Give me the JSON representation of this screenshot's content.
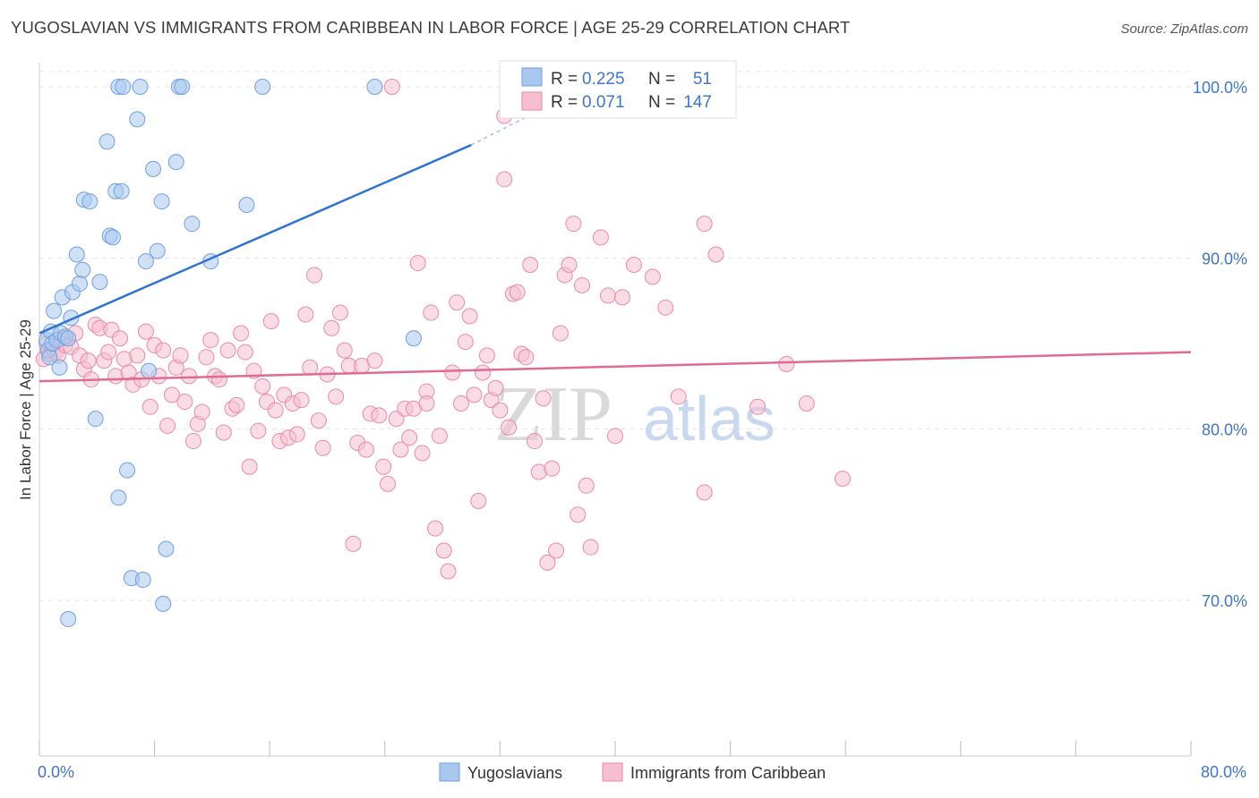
{
  "title": "YUGOSLAVIAN VS IMMIGRANTS FROM CARIBBEAN IN LABOR FORCE | AGE 25-29 CORRELATION CHART",
  "source": "Source: ZipAtlas.com",
  "watermark": {
    "zip": "ZIP",
    "atlas": "atlas"
  },
  "colors": {
    "blue_fill": "#aac8ee",
    "blue_stroke": "#6f9fde",
    "blue_line": "#2f72d0",
    "pink_fill": "#f6bfd0",
    "pink_stroke": "#e88aa8",
    "pink_line": "#e06a91",
    "tick_text": "#3f75c7",
    "grid": "#e3e3e3"
  },
  "legend": {
    "rows": [
      {
        "r_label": "R =",
        "r_value": "0.225",
        "n_label": "N =",
        "n_value": "51"
      },
      {
        "r_label": "R =",
        "r_value": "0.071",
        "n_label": "N =",
        "n_value": "147"
      }
    ]
  },
  "chart_data": {
    "type": "scatter",
    "title": "YUGOSLAVIAN VS IMMIGRANTS FROM CARIBBEAN IN LABOR FORCE | AGE 25-29 CORRELATION CHART",
    "xlabel": "",
    "ylabel": "In Labor Force | Age 25-29",
    "xlim": [
      0,
      80
    ],
    "ylim": [
      60,
      100
    ],
    "x_tick_labels": [
      "0.0%",
      "80.0%"
    ],
    "y_ticks": [
      70,
      80,
      90,
      100
    ],
    "y_tick_labels": [
      "70.0%",
      "80.0%",
      "90.0%",
      "100.0%"
    ],
    "grid": true,
    "legend_position": "top-center",
    "series": [
      {
        "name": "Yugoslavians",
        "color": "#aac8ee",
        "r": 0.225,
        "n": 51,
        "trend": {
          "x": [
            0.0,
            30.0
          ],
          "y": [
            85.6,
            96.6
          ],
          "dashed_to": [
            34.0,
            98.3
          ]
        },
        "points": [
          [
            0.5,
            85.2
          ],
          [
            0.6,
            84.6
          ],
          [
            0.7,
            84.2
          ],
          [
            0.8,
            85.7
          ],
          [
            0.9,
            85.0
          ],
          [
            1.0,
            86.9
          ],
          [
            1.2,
            85.2
          ],
          [
            1.4,
            83.6
          ],
          [
            1.5,
            85.6
          ],
          [
            1.6,
            87.7
          ],
          [
            1.8,
            85.4
          ],
          [
            2.0,
            85.3
          ],
          [
            2.2,
            86.5
          ],
          [
            2.3,
            88.0
          ],
          [
            2.6,
            90.2
          ],
          [
            2.8,
            88.5
          ],
          [
            3.0,
            89.3
          ],
          [
            3.1,
            93.4
          ],
          [
            3.5,
            93.3
          ],
          [
            3.9,
            80.6
          ],
          [
            4.2,
            88.6
          ],
          [
            4.7,
            96.8
          ],
          [
            4.9,
            91.3
          ],
          [
            5.1,
            91.2
          ],
          [
            5.3,
            93.9
          ],
          [
            5.5,
            76.0
          ],
          [
            5.7,
            93.9
          ],
          [
            5.5,
            100.0
          ],
          [
            5.8,
            100.0
          ],
          [
            6.1,
            77.6
          ],
          [
            6.4,
            71.3
          ],
          [
            6.8,
            98.1
          ],
          [
            7.0,
            100.0
          ],
          [
            7.2,
            71.2
          ],
          [
            7.4,
            89.8
          ],
          [
            7.6,
            83.4
          ],
          [
            7.9,
            95.2
          ],
          [
            8.2,
            90.4
          ],
          [
            8.5,
            93.3
          ],
          [
            8.6,
            69.8
          ],
          [
            8.8,
            73.0
          ],
          [
            9.5,
            95.6
          ],
          [
            9.7,
            100.0
          ],
          [
            9.9,
            100.0
          ],
          [
            10.6,
            92.0
          ],
          [
            11.9,
            89.8
          ],
          [
            14.4,
            93.1
          ],
          [
            15.5,
            100.0
          ],
          [
            23.3,
            100.0
          ],
          [
            26.0,
            85.3
          ],
          [
            2.0,
            68.9
          ]
        ]
      },
      {
        "name": "Immigrants from Caribbean",
        "color": "#f6bfd0",
        "r": 0.071,
        "n": 147,
        "trend": {
          "x": [
            0.0,
            80.0
          ],
          "y": [
            82.8,
            84.5
          ]
        },
        "points": [
          [
            0.3,
            84.1
          ],
          [
            0.5,
            85.0
          ],
          [
            0.7,
            84.4
          ],
          [
            0.9,
            84.7
          ],
          [
            1.1,
            84.5
          ],
          [
            1.3,
            84.3
          ],
          [
            1.6,
            85.3
          ],
          [
            1.8,
            84.9
          ],
          [
            2.2,
            84.8
          ],
          [
            2.5,
            85.6
          ],
          [
            2.8,
            84.3
          ],
          [
            3.1,
            83.5
          ],
          [
            3.4,
            84.0
          ],
          [
            3.6,
            82.9
          ],
          [
            3.9,
            86.1
          ],
          [
            4.2,
            85.9
          ],
          [
            4.5,
            84.0
          ],
          [
            4.8,
            84.5
          ],
          [
            5.0,
            85.8
          ],
          [
            5.3,
            83.1
          ],
          [
            5.6,
            85.3
          ],
          [
            5.9,
            84.1
          ],
          [
            6.2,
            83.3
          ],
          [
            6.5,
            82.6
          ],
          [
            6.8,
            84.3
          ],
          [
            7.1,
            82.9
          ],
          [
            7.4,
            85.7
          ],
          [
            7.7,
            81.3
          ],
          [
            8.0,
            84.9
          ],
          [
            8.3,
            83.1
          ],
          [
            8.6,
            84.6
          ],
          [
            8.9,
            80.2
          ],
          [
            9.2,
            82.0
          ],
          [
            9.5,
            83.6
          ],
          [
            9.8,
            84.3
          ],
          [
            10.1,
            81.6
          ],
          [
            10.4,
            83.1
          ],
          [
            10.7,
            79.3
          ],
          [
            11.0,
            80.3
          ],
          [
            11.3,
            81.0
          ],
          [
            11.6,
            84.2
          ],
          [
            11.9,
            85.2
          ],
          [
            12.2,
            83.1
          ],
          [
            12.5,
            82.9
          ],
          [
            12.8,
            79.8
          ],
          [
            13.1,
            84.6
          ],
          [
            13.4,
            81.2
          ],
          [
            13.7,
            81.4
          ],
          [
            14.0,
            85.6
          ],
          [
            14.3,
            84.5
          ],
          [
            14.6,
            77.8
          ],
          [
            14.9,
            83.4
          ],
          [
            15.2,
            79.9
          ],
          [
            15.5,
            82.5
          ],
          [
            15.8,
            81.6
          ],
          [
            16.1,
            86.3
          ],
          [
            16.4,
            81.1
          ],
          [
            16.7,
            79.3
          ],
          [
            17.0,
            82.0
          ],
          [
            17.3,
            79.5
          ],
          [
            17.6,
            81.5
          ],
          [
            17.9,
            79.7
          ],
          [
            18.2,
            81.7
          ],
          [
            18.5,
            86.7
          ],
          [
            18.8,
            83.6
          ],
          [
            19.1,
            89.0
          ],
          [
            19.4,
            80.5
          ],
          [
            19.7,
            78.9
          ],
          [
            20.0,
            83.2
          ],
          [
            20.3,
            85.9
          ],
          [
            20.6,
            81.9
          ],
          [
            20.9,
            86.8
          ],
          [
            21.2,
            84.6
          ],
          [
            21.5,
            83.7
          ],
          [
            21.8,
            73.3
          ],
          [
            22.1,
            79.2
          ],
          [
            22.4,
            83.7
          ],
          [
            22.7,
            78.8
          ],
          [
            23.0,
            80.9
          ],
          [
            23.3,
            84.0
          ],
          [
            23.6,
            80.8
          ],
          [
            23.9,
            77.8
          ],
          [
            24.2,
            76.8
          ],
          [
            24.5,
            100.0
          ],
          [
            24.8,
            80.6
          ],
          [
            25.1,
            78.8
          ],
          [
            25.4,
            81.2
          ],
          [
            25.7,
            79.5
          ],
          [
            26.0,
            81.2
          ],
          [
            26.3,
            89.7
          ],
          [
            26.6,
            78.6
          ],
          [
            26.9,
            82.2
          ],
          [
            27.2,
            86.8
          ],
          [
            27.5,
            74.2
          ],
          [
            27.8,
            79.6
          ],
          [
            28.1,
            72.9
          ],
          [
            28.4,
            71.7
          ],
          [
            28.7,
            83.3
          ],
          [
            29.0,
            87.4
          ],
          [
            29.3,
            81.5
          ],
          [
            29.6,
            85.1
          ],
          [
            29.9,
            86.6
          ],
          [
            30.2,
            82.0
          ],
          [
            30.5,
            75.8
          ],
          [
            30.8,
            83.3
          ],
          [
            31.1,
            84.3
          ],
          [
            31.4,
            81.7
          ],
          [
            31.7,
            82.4
          ],
          [
            32.0,
            81.1
          ],
          [
            32.3,
            94.6
          ],
          [
            32.6,
            80.1
          ],
          [
            32.9,
            87.9
          ],
          [
            33.2,
            88.0
          ],
          [
            33.5,
            84.4
          ],
          [
            33.8,
            84.2
          ],
          [
            34.1,
            89.6
          ],
          [
            34.4,
            79.3
          ],
          [
            34.7,
            77.5
          ],
          [
            35.0,
            81.8
          ],
          [
            35.3,
            72.2
          ],
          [
            35.6,
            77.7
          ],
          [
            35.9,
            72.9
          ],
          [
            36.2,
            85.6
          ],
          [
            36.5,
            89.0
          ],
          [
            36.8,
            89.6
          ],
          [
            37.1,
            92.0
          ],
          [
            37.4,
            75.0
          ],
          [
            37.7,
            88.4
          ],
          [
            38.0,
            76.7
          ],
          [
            38.3,
            73.1
          ],
          [
            39.0,
            91.2
          ],
          [
            39.5,
            87.8
          ],
          [
            40.0,
            79.6
          ],
          [
            40.5,
            87.7
          ],
          [
            41.3,
            89.6
          ],
          [
            42.6,
            88.9
          ],
          [
            43.5,
            87.1
          ],
          [
            44.4,
            81.9
          ],
          [
            46.2,
            92.0
          ],
          [
            47.0,
            90.2
          ],
          [
            49.9,
            81.3
          ],
          [
            51.9,
            83.8
          ],
          [
            53.3,
            81.5
          ],
          [
            55.8,
            77.1
          ],
          [
            32.3,
            98.3
          ],
          [
            46.2,
            76.3
          ],
          [
            26.9,
            81.5
          ]
        ]
      }
    ]
  },
  "bottom_legend": {
    "items": [
      {
        "label": "Yugoslavians"
      },
      {
        "label": "Immigrants from Caribbean"
      }
    ]
  }
}
